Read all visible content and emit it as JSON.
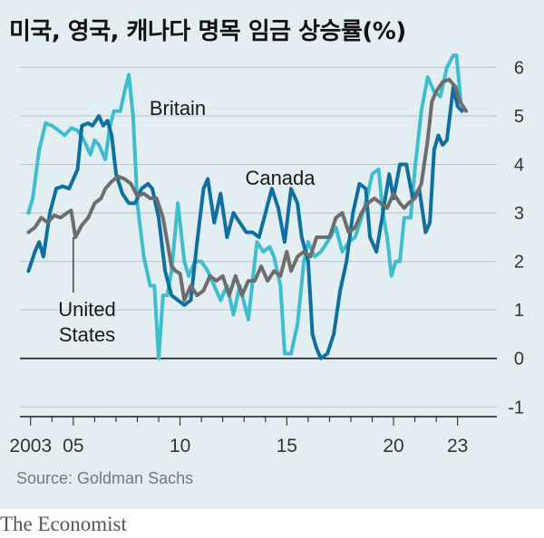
{
  "chart_data": {
    "type": "line",
    "title": "미국, 영국, 캐나다 명목 임금 상승률(%)",
    "source": "Source: Goldman Sachs",
    "brand": "The Economist",
    "xlabel": "",
    "ylabel": "",
    "x_ticks": [
      {
        "value": 2003,
        "label": "2003"
      },
      {
        "value": 2005,
        "label": "05"
      },
      {
        "value": 2010,
        "label": "10"
      },
      {
        "value": 2015,
        "label": "15"
      },
      {
        "value": 2020,
        "label": "20"
      },
      {
        "value": 2023,
        "label": "23"
      }
    ],
    "y_ticks": [
      -1,
      0,
      1,
      2,
      3,
      4,
      5,
      6
    ],
    "xlim": [
      2002.5,
      2024.5
    ],
    "ylim": [
      -1.2,
      6.4
    ],
    "grid": true,
    "colors": {
      "Britain": "#3ebdcd",
      "Canada": "#0f6f9f",
      "United States": "#6d6d6d",
      "background": "#e3eef3",
      "grid": "#b9c5cc"
    },
    "series": [
      {
        "name": "Britain",
        "label": "Britain",
        "points": [
          [
            2002.9,
            3.0
          ],
          [
            2003.1,
            3.3
          ],
          [
            2003.4,
            4.3
          ],
          [
            2003.7,
            4.85
          ],
          [
            2004.0,
            4.8
          ],
          [
            2004.3,
            4.7
          ],
          [
            2004.6,
            4.6
          ],
          [
            2004.9,
            4.75
          ],
          [
            2005.2,
            4.7
          ],
          [
            2005.5,
            4.5
          ],
          [
            2005.8,
            4.2
          ],
          [
            2006.0,
            4.5
          ],
          [
            2006.2,
            4.4
          ],
          [
            2006.5,
            4.1
          ],
          [
            2006.7,
            4.75
          ],
          [
            2006.9,
            5.1
          ],
          [
            2007.2,
            5.1
          ],
          [
            2007.4,
            5.5
          ],
          [
            2007.6,
            5.85
          ],
          [
            2007.8,
            5.0
          ],
          [
            2008.0,
            3.2
          ],
          [
            2008.3,
            2.1
          ],
          [
            2008.6,
            1.5
          ],
          [
            2008.8,
            1.5
          ],
          [
            2009.0,
            0.0
          ],
          [
            2009.2,
            1.3
          ],
          [
            2009.4,
            1.3
          ],
          [
            2009.6,
            1.8
          ],
          [
            2009.9,
            3.2
          ],
          [
            2010.2,
            2.0
          ],
          [
            2010.4,
            1.7
          ],
          [
            2010.7,
            2.0
          ],
          [
            2011.0,
            2.0
          ],
          [
            2011.3,
            1.8
          ],
          [
            2011.6,
            1.5
          ],
          [
            2011.9,
            1.2
          ],
          [
            2012.2,
            1.5
          ],
          [
            2012.5,
            0.9
          ],
          [
            2012.8,
            1.5
          ],
          [
            2013.2,
            0.8
          ],
          [
            2013.6,
            2.4
          ],
          [
            2013.9,
            2.2
          ],
          [
            2014.2,
            2.3
          ],
          [
            2014.4,
            2.1
          ],
          [
            2014.7,
            1.5
          ],
          [
            2014.9,
            0.1
          ],
          [
            2015.2,
            0.1
          ],
          [
            2015.5,
            0.7
          ],
          [
            2015.8,
            2.0
          ],
          [
            2016.0,
            2.4
          ],
          [
            2016.3,
            2.1
          ],
          [
            2016.6,
            2.2
          ],
          [
            2016.9,
            2.4
          ],
          [
            2017.3,
            2.7
          ],
          [
            2017.6,
            2.2
          ],
          [
            2017.9,
            2.4
          ],
          [
            2018.2,
            2.5
          ],
          [
            2018.5,
            2.9
          ],
          [
            2018.8,
            3.4
          ],
          [
            2019.0,
            3.8
          ],
          [
            2019.3,
            3.9
          ],
          [
            2019.5,
            3.0
          ],
          [
            2019.7,
            2.5
          ],
          [
            2019.9,
            1.7
          ],
          [
            2020.1,
            2.0
          ],
          [
            2020.3,
            2.0
          ],
          [
            2020.5,
            2.9
          ],
          [
            2020.8,
            2.9
          ],
          [
            2021.0,
            3.9
          ],
          [
            2021.3,
            5.1
          ],
          [
            2021.6,
            5.8
          ],
          [
            2021.9,
            5.5
          ],
          [
            2022.2,
            5.4
          ],
          [
            2022.5,
            6.0
          ],
          [
            2022.8,
            6.25
          ],
          [
            2022.95,
            6.25
          ],
          [
            2023.15,
            5.3
          ]
        ]
      },
      {
        "name": "Canada",
        "label": "Canada",
        "points": [
          [
            2002.9,
            1.8
          ],
          [
            2003.2,
            2.2
          ],
          [
            2003.4,
            2.4
          ],
          [
            2003.6,
            2.1
          ],
          [
            2003.9,
            3.0
          ],
          [
            2004.2,
            3.5
          ],
          [
            2004.5,
            3.55
          ],
          [
            2004.8,
            3.5
          ],
          [
            2005.0,
            3.7
          ],
          [
            2005.2,
            3.9
          ],
          [
            2005.4,
            4.8
          ],
          [
            2005.7,
            4.85
          ],
          [
            2005.9,
            4.8
          ],
          [
            2006.2,
            5.0
          ],
          [
            2006.4,
            4.8
          ],
          [
            2006.6,
            4.9
          ],
          [
            2006.8,
            4.6
          ],
          [
            2007.0,
            3.8
          ],
          [
            2007.3,
            3.4
          ],
          [
            2007.6,
            3.2
          ],
          [
            2007.9,
            3.2
          ],
          [
            2008.2,
            3.5
          ],
          [
            2008.5,
            3.6
          ],
          [
            2008.7,
            3.5
          ],
          [
            2009.0,
            2.9
          ],
          [
            2009.3,
            1.8
          ],
          [
            2009.6,
            1.3
          ],
          [
            2009.9,
            1.2
          ],
          [
            2010.2,
            1.1
          ],
          [
            2010.5,
            1.2
          ],
          [
            2010.8,
            2.4
          ],
          [
            2011.1,
            3.5
          ],
          [
            2011.3,
            3.7
          ],
          [
            2011.6,
            2.8
          ],
          [
            2011.9,
            3.4
          ],
          [
            2012.2,
            2.5
          ],
          [
            2012.5,
            3.0
          ],
          [
            2012.8,
            2.8
          ],
          [
            2013.1,
            2.6
          ],
          [
            2013.4,
            2.6
          ],
          [
            2013.7,
            2.5
          ],
          [
            2014.0,
            3.0
          ],
          [
            2014.3,
            3.5
          ],
          [
            2014.6,
            3.1
          ],
          [
            2014.9,
            2.4
          ],
          [
            2015.2,
            3.5
          ],
          [
            2015.5,
            3.2
          ],
          [
            2015.7,
            2.5
          ],
          [
            2016.0,
            2.0
          ],
          [
            2016.2,
            0.5
          ],
          [
            2016.4,
            0.2
          ],
          [
            2016.6,
            0.0
          ],
          [
            2016.9,
            0.1
          ],
          [
            2017.2,
            0.5
          ],
          [
            2017.5,
            1.4
          ],
          [
            2017.8,
            2.0
          ],
          [
            2018.1,
            3.0
          ],
          [
            2018.4,
            3.6
          ],
          [
            2018.7,
            3.5
          ],
          [
            2018.9,
            2.5
          ],
          [
            2019.2,
            2.2
          ],
          [
            2019.5,
            3.0
          ],
          [
            2019.8,
            3.8
          ],
          [
            2020.0,
            3.3
          ],
          [
            2020.3,
            4.0
          ],
          [
            2020.6,
            4.0
          ],
          [
            2020.9,
            3.3
          ],
          [
            2021.2,
            3.5
          ],
          [
            2021.5,
            2.6
          ],
          [
            2021.7,
            2.8
          ],
          [
            2021.9,
            4.3
          ],
          [
            2022.1,
            4.6
          ],
          [
            2022.3,
            4.4
          ],
          [
            2022.5,
            4.5
          ],
          [
            2022.8,
            5.6
          ],
          [
            2023.0,
            5.2
          ],
          [
            2023.2,
            5.1
          ]
        ]
      },
      {
        "name": "United States",
        "label": "United\nStates",
        "points": [
          [
            2002.9,
            2.6
          ],
          [
            2003.2,
            2.7
          ],
          [
            2003.5,
            2.9
          ],
          [
            2003.8,
            2.8
          ],
          [
            2004.1,
            2.95
          ],
          [
            2004.4,
            2.9
          ],
          [
            2004.7,
            3.0
          ],
          [
            2004.9,
            3.05
          ],
          [
            2005.1,
            2.5
          ],
          [
            2005.4,
            2.75
          ],
          [
            2005.7,
            2.9
          ],
          [
            2006.0,
            3.2
          ],
          [
            2006.3,
            3.3
          ],
          [
            2006.5,
            3.5
          ],
          [
            2006.8,
            3.65
          ],
          [
            2007.1,
            3.75
          ],
          [
            2007.4,
            3.7
          ],
          [
            2007.7,
            3.6
          ],
          [
            2008.0,
            3.35
          ],
          [
            2008.3,
            3.4
          ],
          [
            2008.6,
            3.3
          ],
          [
            2008.9,
            3.3
          ],
          [
            2009.2,
            2.9
          ],
          [
            2009.4,
            2.4
          ],
          [
            2009.6,
            1.9
          ],
          [
            2009.8,
            1.8
          ],
          [
            2010.0,
            1.75
          ],
          [
            2010.2,
            1.2
          ],
          [
            2010.5,
            1.5
          ],
          [
            2010.8,
            1.3
          ],
          [
            2011.1,
            1.4
          ],
          [
            2011.4,
            1.7
          ],
          [
            2011.7,
            1.6
          ],
          [
            2012.0,
            1.7
          ],
          [
            2012.3,
            1.3
          ],
          [
            2012.6,
            1.7
          ],
          [
            2012.9,
            1.3
          ],
          [
            2013.2,
            1.6
          ],
          [
            2013.5,
            1.6
          ],
          [
            2013.8,
            1.9
          ],
          [
            2014.1,
            1.6
          ],
          [
            2014.4,
            1.8
          ],
          [
            2014.7,
            1.7
          ],
          [
            2015.0,
            2.2
          ],
          [
            2015.2,
            1.8
          ],
          [
            2015.5,
            2.1
          ],
          [
            2015.8,
            2.2
          ],
          [
            2016.1,
            2.1
          ],
          [
            2016.4,
            2.5
          ],
          [
            2016.7,
            2.5
          ],
          [
            2017.0,
            2.5
          ],
          [
            2017.3,
            2.9
          ],
          [
            2017.6,
            3.0
          ],
          [
            2017.9,
            2.6
          ],
          [
            2018.2,
            2.7
          ],
          [
            2018.5,
            3.0
          ],
          [
            2018.8,
            3.2
          ],
          [
            2019.1,
            3.3
          ],
          [
            2019.4,
            3.2
          ],
          [
            2019.7,
            3.1
          ],
          [
            2020.0,
            3.4
          ],
          [
            2020.3,
            3.2
          ],
          [
            2020.5,
            3.1
          ],
          [
            2020.7,
            3.2
          ],
          [
            2021.0,
            3.3
          ],
          [
            2021.3,
            3.6
          ],
          [
            2021.6,
            4.5
          ],
          [
            2021.8,
            5.3
          ],
          [
            2022.0,
            5.5
          ],
          [
            2022.3,
            5.7
          ],
          [
            2022.6,
            5.75
          ],
          [
            2022.9,
            5.6
          ],
          [
            2023.1,
            5.3
          ],
          [
            2023.4,
            5.1
          ]
        ]
      }
    ]
  }
}
